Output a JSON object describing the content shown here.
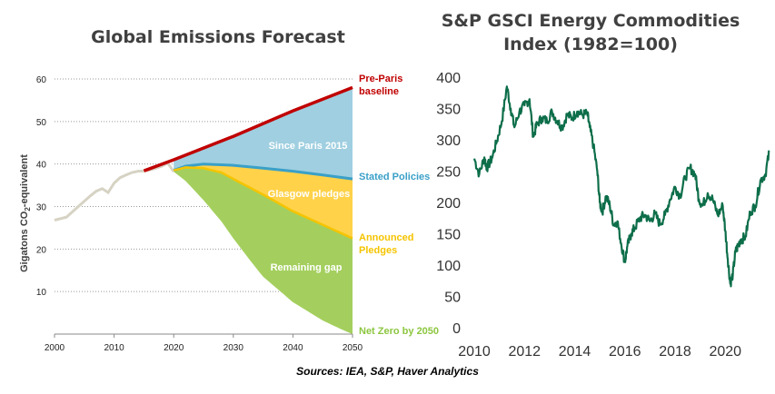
{
  "left_title": "Global Emissions Forecast",
  "right_title_line1": "S&P GSCI  Energy Commodities",
  "right_title_line2": "Index (1982=100)",
  "sources": "Sources: IEA, S&P, Haver Analytics",
  "colors": {
    "historical": "#d6d3c4",
    "pre_paris": "#c00000",
    "since_paris_fill": "#9fcfe0",
    "stated_policies": "#3aa0c8",
    "glasgow_fill": "#ffd24a",
    "announced": "#f5c400",
    "remaining_fill": "#a4cf5e",
    "net_zero": "#8cc63f",
    "gsci_line": "#0d6e4a"
  },
  "chart_data": [
    {
      "type": "area",
      "title": "Global Emissions Forecast",
      "ylabel": "Gigatons CO2-equivalent",
      "xlabel": "",
      "xlim": [
        2000,
        2050
      ],
      "ylim": [
        0,
        60
      ],
      "x_ticks": [
        2000,
        2010,
        2020,
        2030,
        2040,
        2050
      ],
      "y_ticks": [
        10,
        20,
        30,
        40,
        50,
        60
      ],
      "grid": "horizontal dotted",
      "series": [
        {
          "name": "historical",
          "x": [
            2000,
            2002,
            2004,
            2006,
            2007,
            2008,
            2009,
            2010,
            2011,
            2012,
            2013,
            2014,
            2015,
            2016,
            2017,
            2018,
            2019,
            2020
          ],
          "y": [
            26.8,
            27.5,
            30.0,
            32.5,
            33.6,
            34.2,
            33.3,
            35.5,
            36.8,
            37.4,
            38.0,
            38.3,
            38.4,
            38.6,
            39.0,
            39.5,
            40.2,
            38.2
          ]
        },
        {
          "name": "Pre-Paris baseline",
          "x": [
            2015,
            2020,
            2030,
            2040,
            2050
          ],
          "y": [
            38.4,
            41.0,
            46.5,
            52.5,
            58.0
          ]
        },
        {
          "name": "Stated Policies",
          "x": [
            2020,
            2022,
            2025,
            2030,
            2035,
            2040,
            2045,
            2050
          ],
          "y": [
            38.5,
            39.5,
            40.0,
            39.7,
            39.0,
            38.3,
            37.4,
            36.5
          ]
        },
        {
          "name": "Announced Pledges",
          "x": [
            2020,
            2022,
            2025,
            2028,
            2030,
            2035,
            2040,
            2045,
            2050
          ],
          "y": [
            38.5,
            39.2,
            39.0,
            38.0,
            36.5,
            32.8,
            28.9,
            25.7,
            22.5
          ]
        },
        {
          "name": "Net Zero by 2050",
          "x": [
            2020,
            2022,
            2025,
            2028,
            2030,
            2033,
            2035,
            2040,
            2045,
            2048,
            2050
          ],
          "y": [
            38.2,
            36.0,
            31.5,
            26.5,
            22.5,
            17.0,
            13.5,
            7.5,
            3.2,
            1.2,
            0.0
          ]
        }
      ],
      "annotations": [
        {
          "text_line1": "Pre-Paris",
          "text_line2": "baseline"
        },
        {
          "text": "Since Paris 2015"
        },
        {
          "text": "Stated Policies"
        },
        {
          "text": "Glasgow pledges"
        },
        {
          "text_line1": "Announced",
          "text_line2": "Pledges"
        },
        {
          "text": "Remaining gap"
        },
        {
          "text": "Net Zero by 2050"
        }
      ]
    },
    {
      "type": "line",
      "title": "S&P GSCI  Energy Commodities Index (1982=100)",
      "xlabel": "",
      "ylabel": "",
      "xlim": [
        2010,
        2021.8
      ],
      "ylim": [
        0,
        400
      ],
      "x_ticks": [
        2010,
        2012,
        2014,
        2016,
        2018,
        2020
      ],
      "y_ticks": [
        0,
        50,
        100,
        150,
        200,
        250,
        300,
        350,
        400
      ],
      "grid": false,
      "series": [
        {
          "name": "S&P GSCI Energy",
          "x": [
            2010.0,
            2010.2,
            2010.4,
            2010.5,
            2010.7,
            2010.9,
            2011.1,
            2011.3,
            2011.45,
            2011.6,
            2011.8,
            2012.0,
            2012.2,
            2012.35,
            2012.5,
            2012.7,
            2012.9,
            2013.1,
            2013.3,
            2013.5,
            2013.7,
            2013.9,
            2014.1,
            2014.3,
            2014.5,
            2014.6,
            2014.75,
            2014.9,
            2015.0,
            2015.1,
            2015.25,
            2015.4,
            2015.55,
            2015.7,
            2015.85,
            2016.0,
            2016.1,
            2016.25,
            2016.4,
            2016.6,
            2016.8,
            2017.0,
            2017.2,
            2017.4,
            2017.6,
            2017.8,
            2018.0,
            2018.2,
            2018.4,
            2018.6,
            2018.8,
            2018.95,
            2019.1,
            2019.3,
            2019.5,
            2019.7,
            2019.9,
            2020.0,
            2020.1,
            2020.2,
            2020.3,
            2020.4,
            2020.5,
            2020.6,
            2020.8,
            2021.0,
            2021.2,
            2021.4,
            2021.6,
            2021.75
          ],
          "y": [
            270,
            245,
            272,
            255,
            270,
            298,
            330,
            385,
            350,
            320,
            345,
            355,
            365,
            305,
            325,
            335,
            330,
            345,
            330,
            320,
            340,
            335,
            345,
            340,
            342,
            320,
            290,
            250,
            200,
            185,
            210,
            195,
            165,
            170,
            135,
            105,
            130,
            150,
            160,
            175,
            180,
            170,
            182,
            165,
            180,
            205,
            225,
            210,
            240,
            255,
            245,
            205,
            195,
            215,
            205,
            180,
            195,
            155,
            110,
            70,
            85,
            120,
            130,
            140,
            145,
            185,
            195,
            235,
            245,
            280
          ]
        }
      ]
    }
  ]
}
